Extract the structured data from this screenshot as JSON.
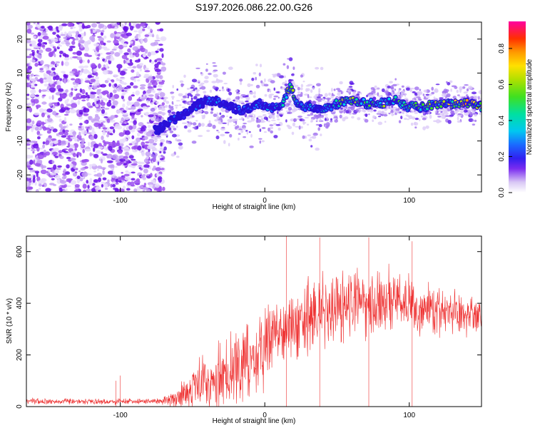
{
  "title": "S197.2026.086.22.00.G26",
  "chart_data": [
    {
      "type": "heatmap",
      "name": "frequency-spectrogram",
      "xlabel": "Height of straight line (km)",
      "ylabel": "Frequency (Hz)",
      "xlim": [
        -165,
        150
      ],
      "ylim": [
        -25,
        25
      ],
      "xticks": [
        -100,
        0,
        100
      ],
      "yticks": [
        -20,
        -10,
        0,
        10,
        20
      ],
      "colorbar": {
        "label": "Normalized spectral amplitude",
        "range": [
          0,
          0.95
        ],
        "ticks": [
          0.0,
          0.2,
          0.4,
          0.6,
          0.8
        ]
      },
      "ridge": {
        "x": [
          -75,
          -65,
          -55,
          -45,
          -35,
          -25,
          -15,
          -5,
          5,
          12,
          18,
          22,
          30,
          40,
          50,
          60,
          70,
          80,
          90,
          100,
          110,
          120,
          130,
          140,
          150
        ],
        "freq": [
          -7,
          -4,
          -2,
          1,
          2,
          0,
          -1,
          1,
          0,
          1,
          6,
          1,
          0,
          -1,
          1,
          2,
          1,
          1,
          2,
          0,
          0,
          1,
          1,
          1,
          0
        ],
        "amplitude": [
          0.1,
          0.15,
          0.15,
          0.2,
          0.2,
          0.2,
          0.15,
          0.2,
          0.3,
          0.4,
          0.6,
          0.45,
          0.3,
          0.35,
          0.45,
          0.55,
          0.5,
          0.5,
          0.55,
          0.5,
          0.5,
          0.55,
          0.6,
          0.75,
          0.6
        ]
      }
    },
    {
      "type": "line",
      "name": "snr",
      "xlabel": "Height of straight line (km)",
      "ylabel": "SNR (10 * v/v)",
      "xlim": [
        -165,
        150
      ],
      "ylim": [
        0,
        660
      ],
      "xticks": [
        -100,
        0,
        100
      ],
      "yticks": [
        0,
        200,
        400,
        600
      ],
      "color": "#ee3030",
      "envelope": {
        "x": [
          -165,
          -100,
          -75,
          -65,
          -55,
          -45,
          -35,
          -25,
          -15,
          -5,
          5,
          15,
          25,
          35,
          45,
          55,
          65,
          75,
          85,
          95,
          105,
          115,
          125,
          135,
          150
        ],
        "mean": [
          20,
          20,
          20,
          25,
          60,
          90,
          110,
          140,
          170,
          200,
          260,
          300,
          330,
          370,
          390,
          400,
          410,
          410,
          420,
          410,
          390,
          380,
          370,
          360,
          350
        ],
        "spread": [
          12,
          12,
          10,
          30,
          80,
          110,
          120,
          140,
          160,
          170,
          180,
          170,
          170,
          160,
          150,
          150,
          140,
          140,
          140,
          130,
          120,
          110,
          100,
          90,
          80
        ]
      },
      "spikes": [
        {
          "x": -103,
          "y": 100
        },
        {
          "x": -100,
          "y": 120
        },
        {
          "x": 15,
          "y": 660
        },
        {
          "x": 38,
          "y": 655
        },
        {
          "x": 72,
          "y": 655
        },
        {
          "x": 102,
          "y": 640
        }
      ]
    }
  ]
}
